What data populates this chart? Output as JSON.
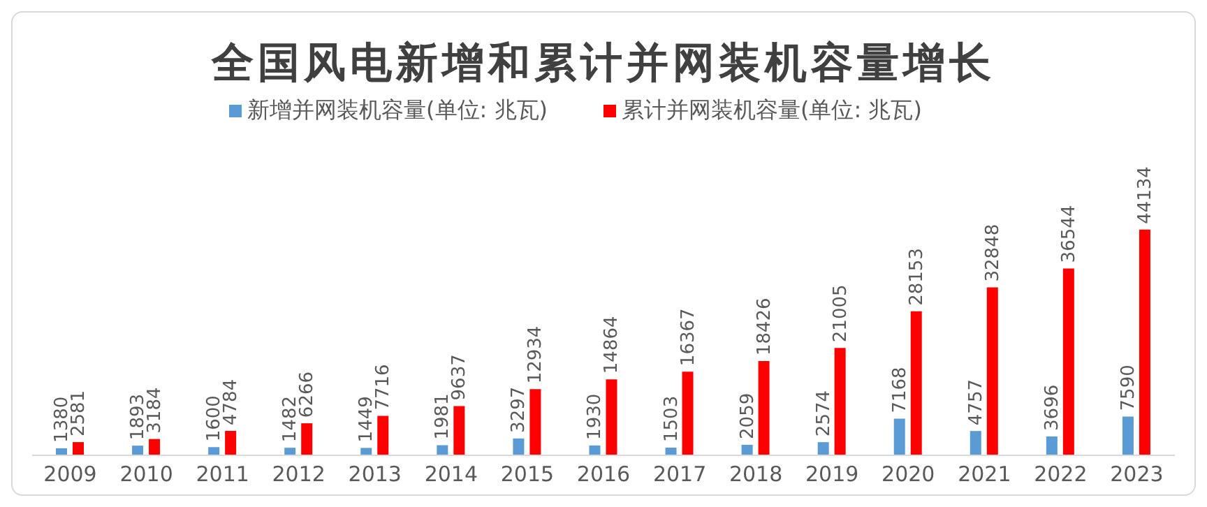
{
  "chart_data": {
    "type": "bar",
    "title": "全国风电新增和累计并网装机容量增长",
    "categories": [
      "2009",
      "2010",
      "2011",
      "2012",
      "2013",
      "2014",
      "2015",
      "2016",
      "2017",
      "2018",
      "2019",
      "2020",
      "2021",
      "2022",
      "2023"
    ],
    "series": [
      {
        "name": "新增并网装机容量(单位: 兆瓦)",
        "color": "#5b9bd5",
        "values": [
          1380,
          1893,
          1600,
          1482,
          1449,
          1981,
          3297,
          1930,
          1503,
          2059,
          2574,
          7168,
          4757,
          3696,
          7590
        ]
      },
      {
        "name": "累计并网装机容量(单位: 兆瓦)",
        "color": "#ff0000",
        "values": [
          2581,
          3184,
          4784,
          6266,
          7716,
          9637,
          12934,
          14864,
          16367,
          18426,
          21005,
          28153,
          32848,
          36544,
          44134
        ]
      }
    ],
    "data_labels": true,
    "legend": "top",
    "grid": false
  }
}
